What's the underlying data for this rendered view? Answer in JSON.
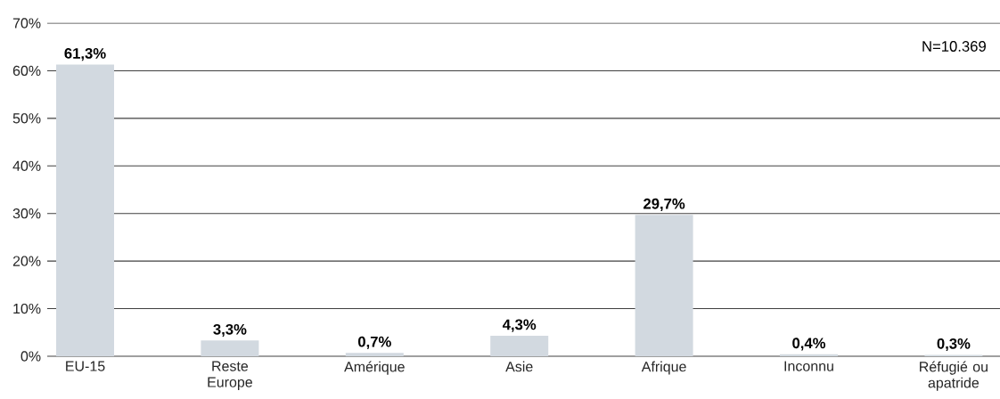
{
  "chart_data": {
    "type": "bar",
    "categories": [
      "EU-15",
      "Reste Europe",
      "Amérique",
      "Asie",
      "Afrique",
      "Inconnu",
      "Réfugié ou apatride"
    ],
    "values": [
      61.3,
      3.3,
      0.7,
      4.3,
      29.7,
      0.4,
      0.3
    ],
    "value_labels": [
      "61,3%",
      "3,3%",
      "0,7%",
      "4,3%",
      "29,7%",
      "0,4%",
      "0,3%"
    ],
    "color": "#d2d9e0",
    "ylim": [
      0,
      70
    ],
    "yticks": [
      {
        "value": 0,
        "label": "0%"
      },
      {
        "value": 10,
        "label": "10%"
      },
      {
        "value": 20,
        "label": "20%"
      },
      {
        "value": 30,
        "label": "30%"
      },
      {
        "value": 40,
        "label": "40%"
      },
      {
        "value": 50,
        "label": "50%"
      },
      {
        "value": 60,
        "label": "60%"
      },
      {
        "value": 70,
        "label": "70%"
      }
    ],
    "grid": "y",
    "annotations": [
      "N=10.369"
    ]
  }
}
